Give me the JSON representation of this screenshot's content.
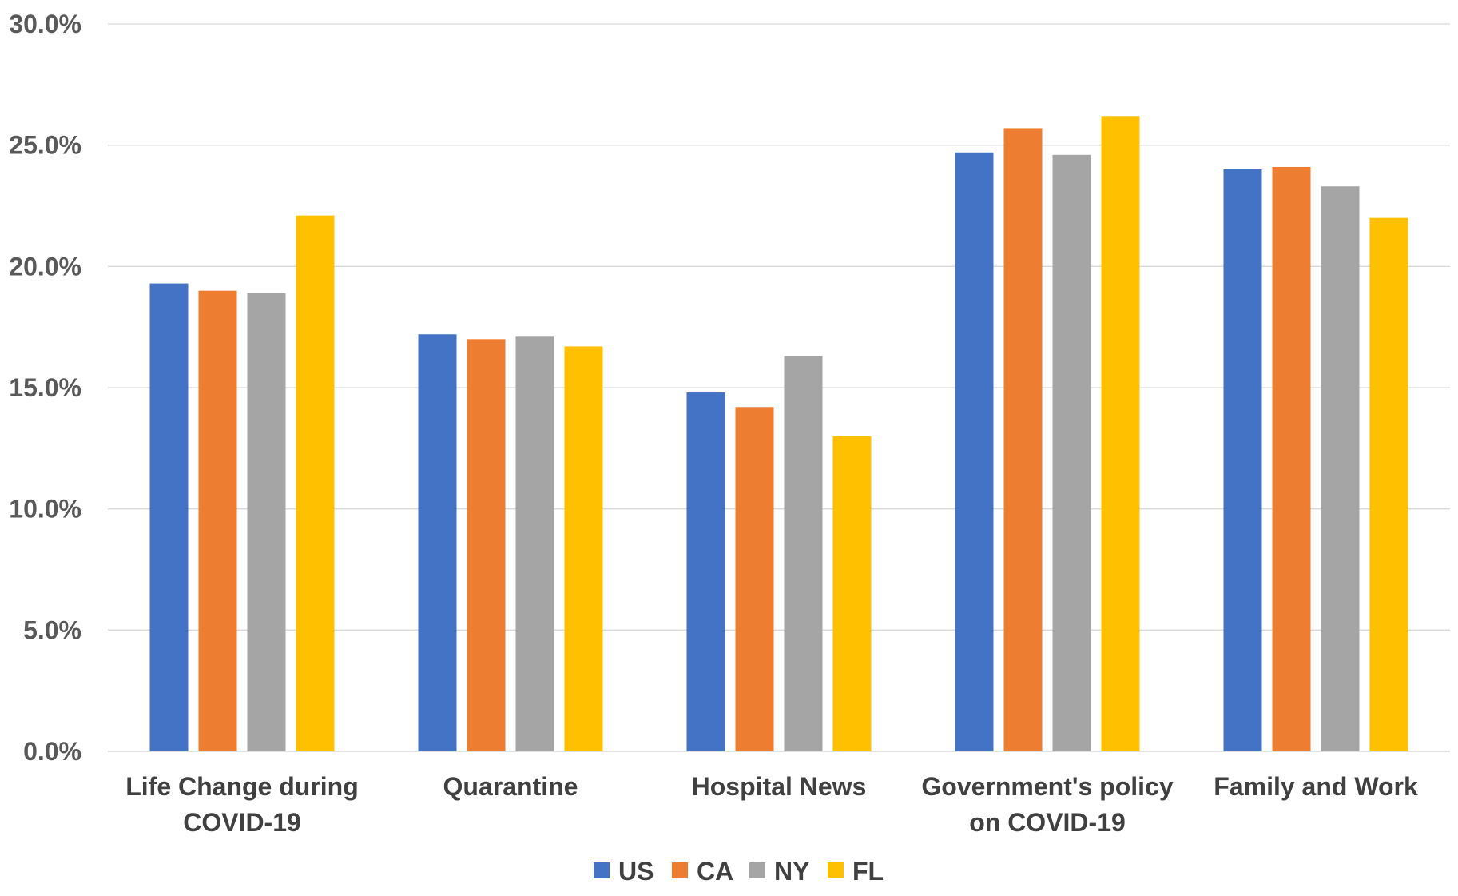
{
  "chart_data": {
    "type": "bar",
    "title": "",
    "xlabel": "",
    "ylabel": "",
    "ylim": [
      0,
      30
    ],
    "y_ticks": [
      0,
      5,
      10,
      15,
      20,
      25,
      30
    ],
    "y_tick_labels": [
      "0.0%",
      "5.0%",
      "10.0%",
      "15.0%",
      "20.0%",
      "25.0%",
      "30.0%"
    ],
    "y_unit": "%",
    "grid": true,
    "legend_position": "bottom",
    "categories": [
      [
        "Life Change during",
        "COVID-19"
      ],
      [
        "Quarantine"
      ],
      [
        "Hospital News"
      ],
      [
        "Government's policy",
        "on COVID-19"
      ],
      [
        "Family and Work"
      ]
    ],
    "series": [
      {
        "name": "US",
        "color": "#4472C4",
        "values": [
          19.3,
          17.2,
          14.8,
          24.7,
          24.0
        ]
      },
      {
        "name": "CA",
        "color": "#ED7D31",
        "values": [
          19.0,
          17.0,
          14.2,
          25.7,
          24.1
        ]
      },
      {
        "name": "NY",
        "color": "#A5A5A5",
        "values": [
          18.9,
          17.1,
          16.3,
          24.6,
          23.3
        ]
      },
      {
        "name": "FL",
        "color": "#FFC000",
        "values": [
          22.1,
          16.7,
          13.0,
          26.2,
          22.0
        ]
      }
    ]
  }
}
